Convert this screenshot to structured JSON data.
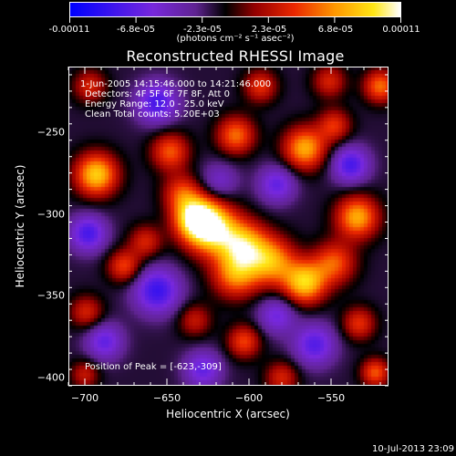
{
  "colorbar": {
    "labels": [
      "-0.00011",
      "-6.8e-05",
      "-2.3e-05",
      "2.3e-05",
      "6.8e-05",
      "0.00011"
    ],
    "units": "(photons cm⁻² s⁻¹ asec⁻²)",
    "range": [
      -0.00011,
      0.00011
    ],
    "colormap": [
      "#0000ff",
      "#7d1ad5",
      "#a02cb8",
      "#c8361c",
      "#ff6600",
      "#ffb700",
      "#ffffff"
    ]
  },
  "chart_data": {
    "type": "heatmap",
    "title": "Reconstructed RHESSI Image",
    "xlabel": "Heliocentric X (arcsec)",
    "ylabel": "Heliocentric Y (arcsec)",
    "xlim": [
      -710,
      -515
    ],
    "ylim": [
      -405,
      -210
    ],
    "x_ticks": [
      -700,
      -650,
      -600,
      -550
    ],
    "y_ticks": [
      -250,
      -300,
      -350,
      -400
    ],
    "x_tick_labels": [
      "−700",
      "−650",
      "−600",
      "−550"
    ],
    "y_tick_labels": [
      "−250",
      "−300",
      "−350",
      "−400"
    ],
    "peak": {
      "x": -623,
      "y": -309
    },
    "sources": [
      {
        "x": -623,
        "y": -309,
        "amp": 1.0,
        "sigma": 11
      },
      {
        "x": -633,
        "y": -302,
        "amp": 0.85,
        "sigma": 9
      },
      {
        "x": -603,
        "y": -319,
        "amp": 0.75,
        "sigma": 10
      },
      {
        "x": -608,
        "y": -337,
        "amp": 0.65,
        "sigma": 10
      },
      {
        "x": -586,
        "y": -329,
        "amp": 0.7,
        "sigma": 10
      },
      {
        "x": -566,
        "y": -342,
        "amp": 0.85,
        "sigma": 9
      },
      {
        "x": -548,
        "y": -330,
        "amp": 0.55,
        "sigma": 9
      },
      {
        "x": -534,
        "y": -302,
        "amp": 0.75,
        "sigma": 9
      },
      {
        "x": -648,
        "y": -262,
        "amp": 0.55,
        "sigma": 8
      },
      {
        "x": -641,
        "y": -287,
        "amp": 0.45,
        "sigma": 8
      },
      {
        "x": -608,
        "y": -252,
        "amp": 0.6,
        "sigma": 8
      },
      {
        "x": -566,
        "y": -260,
        "amp": 0.75,
        "sigma": 9
      },
      {
        "x": -548,
        "y": -246,
        "amp": 0.45,
        "sigma": 7
      },
      {
        "x": -520,
        "y": -222,
        "amp": 0.6,
        "sigma": 7
      },
      {
        "x": -593,
        "y": -222,
        "amp": 0.45,
        "sigma": 7
      },
      {
        "x": -551,
        "y": -219,
        "amp": 0.4,
        "sigma": 7
      },
      {
        "x": -693,
        "y": -276,
        "amp": 0.85,
        "sigma": 9
      },
      {
        "x": -697,
        "y": -222,
        "amp": 0.4,
        "sigma": 7
      },
      {
        "x": -676,
        "y": -332,
        "amp": 0.5,
        "sigma": 7
      },
      {
        "x": -699,
        "y": -360,
        "amp": 0.4,
        "sigma": 7
      },
      {
        "x": -603,
        "y": -378,
        "amp": 0.5,
        "sigma": 7
      },
      {
        "x": -533,
        "y": -367,
        "amp": 0.45,
        "sigma": 7
      },
      {
        "x": -523,
        "y": -397,
        "amp": 0.55,
        "sigma": 6
      },
      {
        "x": -580,
        "y": -400,
        "amp": 0.4,
        "sigma": 7
      },
      {
        "x": -700,
        "y": -398,
        "amp": 0.35,
        "sigma": 6
      },
      {
        "x": -663,
        "y": -317,
        "amp": 0.4,
        "sigma": 7
      },
      {
        "x": -633,
        "y": -365,
        "amp": 0.35,
        "sigma": 7
      },
      {
        "x": -656,
        "y": -232,
        "amp": -0.55,
        "sigma": 9
      },
      {
        "x": -698,
        "y": -312,
        "amp": -0.55,
        "sigma": 8
      },
      {
        "x": -656,
        "y": -347,
        "amp": -0.6,
        "sigma": 10
      },
      {
        "x": -538,
        "y": -270,
        "amp": -0.55,
        "sigma": 8
      },
      {
        "x": -583,
        "y": -282,
        "amp": -0.45,
        "sigma": 8
      },
      {
        "x": -560,
        "y": -380,
        "amp": -0.5,
        "sigma": 9
      },
      {
        "x": -628,
        "y": -395,
        "amp": -0.45,
        "sigma": 8
      },
      {
        "x": -688,
        "y": -378,
        "amp": -0.45,
        "sigma": 8
      },
      {
        "x": -583,
        "y": -362,
        "amp": -0.4,
        "sigma": 8
      },
      {
        "x": -618,
        "y": -280,
        "amp": -0.3,
        "sigma": 8
      }
    ]
  },
  "annotations": {
    "time_range": "1-Jun-2005 14:15:46.000 to 14:21:46.000",
    "detectors": "Detectors: 4F 5F 6F 7F 8F, Att 0",
    "energy": "Energy Range: 12.0 - 25.0 keV",
    "clean": "Clean      Total counts: 5.20E+03",
    "peak_text": "Position of Peak = [-623,-309]"
  },
  "timestamp": "10-Jul-2013 23:09"
}
